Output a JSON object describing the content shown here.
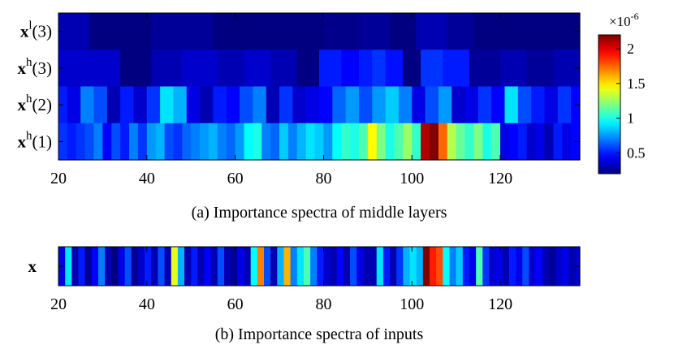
{
  "chart_data": [
    {
      "type": "heatmap",
      "caption": "(a)  Importance spectra of middle layers",
      "xlabel": "",
      "ylabel": "",
      "xlim": [
        20,
        138
      ],
      "xticks": [
        20,
        40,
        60,
        80,
        100,
        120
      ],
      "rows": [
        {
          "base": "x",
          "sup": "l",
          "arg": "(3)"
        },
        {
          "base": "x",
          "sup": "h",
          "arg": "(3)"
        },
        {
          "base": "x",
          "sup": "h",
          "arg": "(2)"
        },
        {
          "base": "x",
          "sup": "h",
          "arg": "(1)"
        }
      ],
      "x_bin_edges": {
        "x3l": [
          20,
          27,
          35,
          41,
          55,
          67,
          80,
          88,
          95,
          101,
          108,
          114,
          121,
          127,
          138
        ],
        "x3h": [
          20,
          34,
          41,
          48,
          56,
          62,
          68,
          74,
          79,
          84,
          88,
          91,
          94,
          98,
          102,
          107,
          113,
          120,
          126,
          132,
          138
        ],
        "x2h": [
          20,
          22,
          25,
          28,
          31,
          34,
          37,
          40,
          43,
          46,
          49,
          52,
          55,
          58,
          61,
          64,
          67,
          70,
          73,
          76,
          79,
          82,
          85,
          88,
          91,
          94,
          97,
          100,
          103,
          106,
          109,
          112,
          115,
          118,
          121,
          124,
          127,
          130,
          133,
          136,
          138
        ],
        "x1h": [
          20,
          22,
          24,
          26,
          28,
          30,
          32,
          34,
          36,
          38,
          40,
          42,
          44,
          46,
          48,
          50,
          52,
          54,
          56,
          58,
          60,
          62,
          64,
          66,
          68,
          70,
          72,
          74,
          76,
          78,
          80,
          82,
          84,
          86,
          88,
          90,
          92,
          94,
          96,
          98,
          100,
          102,
          104,
          106,
          108,
          110,
          112,
          114,
          116,
          118,
          120,
          122,
          124,
          126,
          128,
          130,
          132,
          134,
          136,
          138
        ]
      },
      "values": {
        "x3l": [
          0.3,
          0.2,
          0.15,
          0.25,
          0.2,
          0.18,
          0.22,
          0.25,
          0.2,
          0.3,
          0.25,
          0.2,
          0.18,
          0.2
        ],
        "x3h": [
          0.35,
          0.15,
          0.3,
          0.35,
          0.3,
          0.35,
          0.3,
          0.2,
          0.5,
          0.45,
          0.5,
          0.55,
          0.48,
          0.15,
          0.55,
          0.5,
          0.25,
          0.3,
          0.25,
          0.3
        ],
        "x2h": [
          0.5,
          0.4,
          0.7,
          0.6,
          0.3,
          0.5,
          0.35,
          0.55,
          0.9,
          0.8,
          0.4,
          0.3,
          0.5,
          0.45,
          0.6,
          0.7,
          0.3,
          0.55,
          0.35,
          0.4,
          0.45,
          0.65,
          0.75,
          0.6,
          0.75,
          0.85,
          0.7,
          0.4,
          0.6,
          0.75,
          0.35,
          0.4,
          0.55,
          0.45,
          0.9,
          0.6,
          0.5,
          0.4,
          0.55,
          0.45
        ],
        "x1h": [
          0.55,
          0.5,
          0.55,
          0.6,
          0.7,
          0.45,
          0.6,
          0.5,
          0.7,
          0.55,
          0.75,
          0.8,
          0.6,
          0.55,
          0.65,
          0.7,
          0.75,
          0.8,
          0.7,
          0.65,
          0.75,
          0.95,
          1.0,
          0.7,
          0.65,
          0.85,
          0.7,
          0.8,
          0.9,
          0.85,
          0.75,
          0.95,
          1.05,
          1.0,
          1.1,
          1.45,
          1.2,
          1.0,
          1.1,
          1.25,
          1.05,
          2.1,
          2.2,
          1.75,
          1.3,
          1.15,
          1.05,
          1.2,
          1.0,
          1.1,
          0.4,
          0.45,
          0.5,
          0.35,
          0.4,
          0.3,
          0.5,
          0.4,
          0.45
        ]
      }
    },
    {
      "type": "heatmap",
      "caption": "(b) Importance spectra of inputs",
      "xlabel": "",
      "ylabel": "",
      "xlim": [
        20,
        138
      ],
      "xticks": [
        20,
        40,
        60,
        80,
        100,
        120
      ],
      "rows": [
        {
          "base": "x",
          "sup": "",
          "arg": ""
        }
      ],
      "x_bin_edges": [
        20,
        21.5,
        23,
        24.5,
        26,
        27.5,
        29,
        30.5,
        32,
        33.5,
        35,
        36.5,
        38,
        39.5,
        41,
        42.5,
        44,
        45.5,
        47,
        48.5,
        50,
        51.5,
        53,
        54.5,
        56,
        57.5,
        59,
        60.5,
        62,
        63.5,
        65,
        66.5,
        68,
        69.5,
        71,
        72.5,
        74,
        75.5,
        77,
        78.5,
        80,
        81.5,
        83,
        84.5,
        86,
        87.5,
        89,
        90.5,
        92,
        93.5,
        95,
        96.5,
        98,
        99.5,
        101,
        102.5,
        104,
        105.5,
        107,
        108.5,
        110,
        111.5,
        113,
        114.5,
        116,
        117.5,
        119,
        120.5,
        122,
        123.5,
        125,
        126.5,
        128,
        129.5,
        131,
        132.5,
        134,
        135.5,
        137,
        138
      ],
      "values": [
        0.4,
        0.9,
        0.3,
        0.5,
        0.25,
        0.45,
        0.7,
        0.3,
        0.2,
        0.4,
        0.6,
        0.25,
        0.35,
        0.5,
        0.3,
        0.6,
        0.3,
        1.4,
        0.8,
        0.3,
        0.5,
        0.3,
        0.45,
        0.3,
        0.6,
        0.3,
        0.25,
        0.4,
        0.3,
        0.95,
        1.7,
        0.6,
        0.3,
        0.8,
        1.6,
        0.7,
        0.9,
        1.1,
        0.7,
        0.5,
        0.35,
        0.3,
        0.45,
        0.3,
        0.6,
        0.4,
        0.3,
        0.3,
        0.9,
        0.5,
        0.3,
        0.55,
        0.8,
        0.9,
        0.8,
        2.2,
        1.9,
        1.8,
        0.95,
        0.7,
        0.85,
        0.5,
        0.4,
        1.1,
        0.55,
        0.35,
        0.4,
        0.3,
        0.5,
        0.4,
        0.6,
        0.35,
        0.45,
        0.3,
        0.25,
        0.35,
        0.4,
        0.3,
        0.35
      ]
    }
  ],
  "colorbar": {
    "colormap": "jet",
    "range": [
      0.2,
      2.2
    ],
    "ticks": [
      0.5,
      1,
      1.5,
      2
    ],
    "tick_labels": [
      "0.5",
      "1",
      "1.5",
      "2"
    ],
    "multiplier_base": "×10",
    "multiplier_exp": "-6"
  },
  "colors": {
    "frame": "#000000",
    "background": "#ffffff"
  }
}
